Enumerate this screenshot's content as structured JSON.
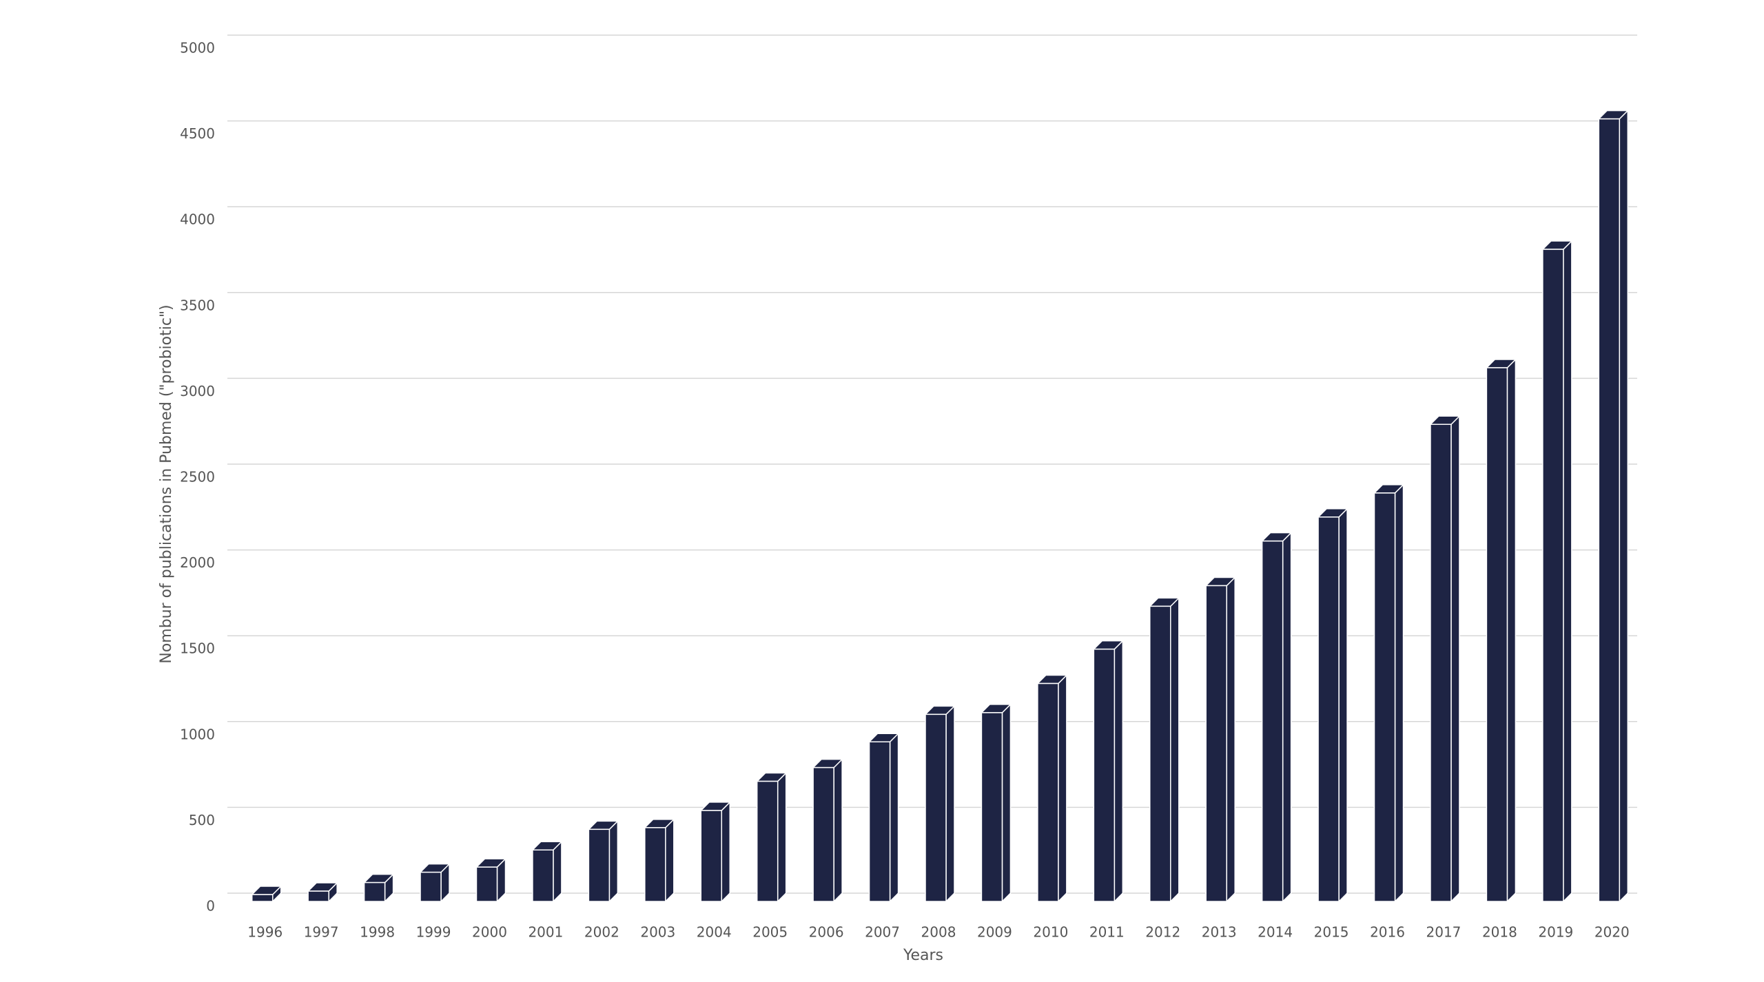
{
  "chart_data": {
    "type": "bar",
    "x_label": "Years",
    "y_label": "Nombur of publications in Pubmed (\"probiotic\")",
    "categories": [
      "1996",
      "1997",
      "1998",
      "1999",
      "2000",
      "2001",
      "2002",
      "2003",
      "2004",
      "2005",
      "2006",
      "2007",
      "2008",
      "2009",
      "2010",
      "2011",
      "2012",
      "2013",
      "2014",
      "2015",
      "2016",
      "2017",
      "2018",
      "2019",
      "2020"
    ],
    "values": [
      40,
      60,
      110,
      170,
      200,
      300,
      420,
      430,
      530,
      700,
      780,
      930,
      1090,
      1100,
      1270,
      1470,
      1720,
      1840,
      2100,
      2240,
      2380,
      2780,
      3110,
      3800,
      4560
    ],
    "color": "#1e2444",
    "ylim": [
      0,
      5000
    ],
    "yticks": [
      0,
      500,
      1000,
      1500,
      2000,
      2500,
      3000,
      3500,
      4000,
      4500,
      5000
    ],
    "grid": true
  }
}
